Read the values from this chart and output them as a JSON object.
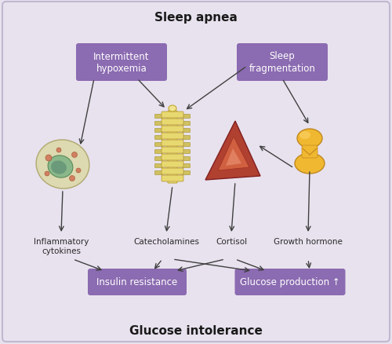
{
  "background_color": "#e8e2ee",
  "box_color": "#8b6bb1",
  "box_text_color": "#ffffff",
  "title_top": "Sleep apnea",
  "title_bottom": "Glucose intolerance",
  "box1_label": "Intermittent\nhypoxemia",
  "box2_label": "Sleep\nfragmentation",
  "box3_label": "Insulin resistance",
  "box4_label": "Glucose production ↑",
  "label_inflammatory": "Inflammatory\ncytokines",
  "label_catecholamines": "Catecholamines",
  "label_cortisol": "Cortisol",
  "label_growth": "Growth hormone",
  "figsize": [
    5.0,
    4.39
  ],
  "dpi": 100
}
